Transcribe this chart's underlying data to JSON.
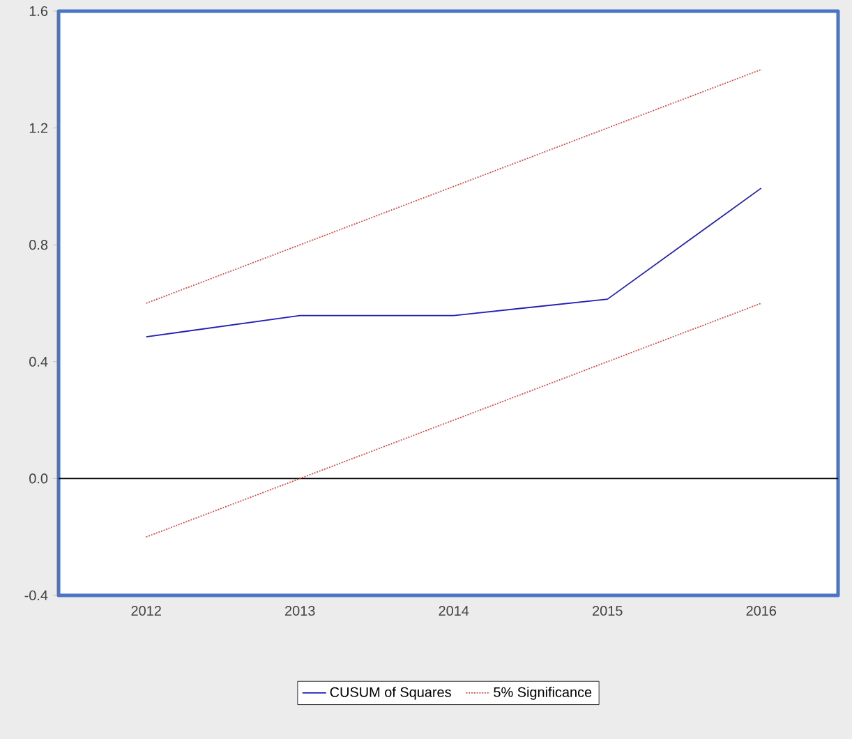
{
  "chart_data": {
    "type": "line",
    "categories": [
      "2012",
      "2013",
      "2014",
      "2015",
      "2016"
    ],
    "series": [
      {
        "name": "CUSUM of Squares",
        "color": "#1f1fb4",
        "values": [
          0.485,
          0.558,
          0.558,
          0.614,
          0.994
        ],
        "line_style": "solid"
      },
      {
        "name": "5% Significance",
        "color": "#e03c3c",
        "values": [
          0.6,
          0.8,
          1.0,
          1.2,
          1.4
        ],
        "line_style": "dotted"
      },
      {
        "color": "#e03c3c",
        "values": [
          -0.2,
          0.0,
          0.2,
          0.4,
          0.6
        ],
        "line_style": "dotted"
      }
    ],
    "ylim": [
      -0.4,
      1.6
    ],
    "yticks": [
      {
        "value": -0.4,
        "label": "-0.4"
      },
      {
        "value": 0.0,
        "label": "0.0"
      },
      {
        "value": 0.4,
        "label": "0.4"
      },
      {
        "value": 0.8,
        "label": "0.8"
      },
      {
        "value": 1.2,
        "label": "1.2"
      },
      {
        "value": 1.6,
        "label": "1.6"
      }
    ],
    "ref_lines": [
      {
        "axis": "y",
        "value": 0.0,
        "color": "#000000"
      }
    ],
    "grid": false,
    "legend": "bottom",
    "marker": "none"
  }
}
